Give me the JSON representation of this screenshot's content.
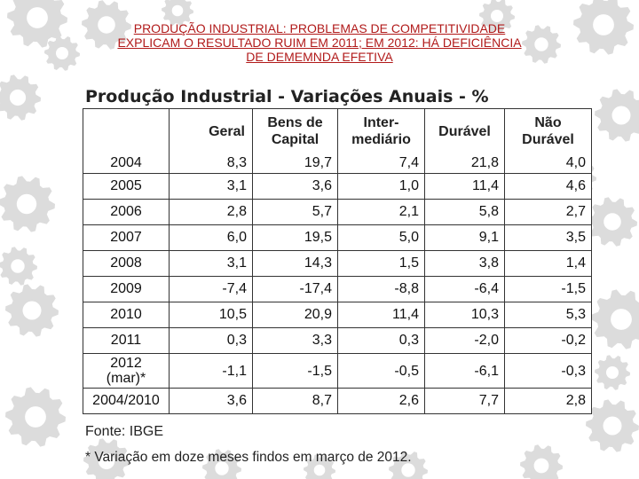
{
  "slide_title": {
    "line1": "PRODUÇÃO INDUSTRIAL: PROBLEMAS DE COMPETITIVIDADE",
    "line2": "EXPLICAM O RESULTADO RUIM EM 2011; EM 2012: HÁ DEFICIÊNCIA",
    "line3": "DE DEMEMNDA EFETIVA"
  },
  "table_title": "Produção Industrial - Variações Anuais - %",
  "columns": {
    "geral": "Geral",
    "bens_capital": [
      "Bens de",
      "Capital"
    ],
    "intermediario": [
      "Inter-",
      "mediário"
    ],
    "duravel": "Durável",
    "nao_duravel": [
      "Não",
      "Durável"
    ]
  },
  "rows": [
    {
      "year": "2004",
      "values": [
        "8,3",
        "19,7",
        "7,4",
        "21,8",
        "4,0"
      ]
    },
    {
      "year": "2005",
      "values": [
        "3,1",
        "3,6",
        "1,0",
        "11,4",
        "4,6"
      ]
    },
    {
      "year": "2006",
      "values": [
        "2,8",
        "5,7",
        "2,1",
        "5,8",
        "2,7"
      ]
    },
    {
      "year": "2007",
      "values": [
        "6,0",
        "19,5",
        "5,0",
        "9,1",
        "3,5"
      ]
    },
    {
      "year": "2008",
      "values": [
        "3,1",
        "14,3",
        "1,5",
        "3,8",
        "1,4"
      ]
    },
    {
      "year": "2009",
      "values": [
        "-7,4",
        "-17,4",
        "-8,8",
        "-6,4",
        "-1,5"
      ]
    },
    {
      "year": "2010",
      "values": [
        "10,5",
        "20,9",
        "11,4",
        "10,3",
        "5,3"
      ]
    },
    {
      "year": "2011",
      "values": [
        "0,3",
        "3,3",
        "0,3",
        "-2,0",
        "-0,2"
      ]
    },
    {
      "year": [
        "2012",
        "(mar)*"
      ],
      "values": [
        "-1,1",
        "-1,5",
        "-0,5",
        "-6,1",
        "-0,3"
      ]
    },
    {
      "year": "2004/2010",
      "values": [
        "3,6",
        "8,7",
        "2,6",
        "7,7",
        "2,8"
      ]
    }
  ],
  "source": "Fonte: IBGE",
  "footnote": "* Variação em doze meses findos em março de 2012.",
  "colors": {
    "title_red": "#b11a1a",
    "gear_gray": "#dcdcdc"
  },
  "background_icon": "gear-icon"
}
